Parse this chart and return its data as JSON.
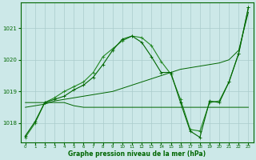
{
  "title": "Graphe pression niveau de la mer (hPa)",
  "bg_color": "#cce8e8",
  "grid_color": "#aacccc",
  "line_color_dark": "#006600",
  "line_color_mid": "#228822",
  "xlim": [
    -0.5,
    23.5
  ],
  "ylim": [
    1017.4,
    1021.8
  ],
  "yticks": [
    1018,
    1019,
    1020,
    1021
  ],
  "xticks": [
    0,
    1,
    2,
    3,
    4,
    5,
    6,
    7,
    8,
    9,
    10,
    11,
    12,
    13,
    14,
    15,
    16,
    17,
    18,
    19,
    20,
    21,
    22,
    23
  ],
  "series_flat": {
    "x": [
      0,
      1,
      2,
      3,
      4,
      5,
      6,
      7,
      8,
      9,
      10,
      11,
      12,
      13,
      14,
      15,
      16,
      17,
      18,
      19,
      20,
      21,
      22,
      23
    ],
    "y": [
      1018.65,
      1018.65,
      1018.65,
      1018.65,
      1018.65,
      1018.55,
      1018.5,
      1018.5,
      1018.5,
      1018.5,
      1018.5,
      1018.5,
      1018.5,
      1018.5,
      1018.5,
      1018.5,
      1018.5,
      1018.5,
      1018.5,
      1018.5,
      1018.5,
      1018.5,
      1018.5,
      1018.5
    ]
  },
  "series_diag": {
    "x": [
      0,
      1,
      2,
      3,
      4,
      5,
      6,
      7,
      8,
      9,
      10,
      11,
      12,
      13,
      14,
      15,
      16,
      17,
      18,
      19,
      20,
      21,
      22,
      23
    ],
    "y": [
      1018.5,
      1018.55,
      1018.6,
      1018.7,
      1018.75,
      1018.8,
      1018.85,
      1018.9,
      1018.95,
      1019.0,
      1019.1,
      1019.2,
      1019.3,
      1019.4,
      1019.5,
      1019.6,
      1019.7,
      1019.75,
      1019.8,
      1019.85,
      1019.9,
      1020.0,
      1020.3,
      1021.5
    ]
  },
  "series_curve1": {
    "x": [
      0,
      1,
      2,
      3,
      4,
      5,
      6,
      7,
      8,
      9,
      10,
      11,
      12,
      13,
      14,
      15,
      16,
      17,
      18,
      19,
      20,
      21,
      22,
      23
    ],
    "y": [
      1017.55,
      1018.0,
      1018.65,
      1018.8,
      1019.0,
      1019.15,
      1019.3,
      1019.6,
      1020.1,
      1020.35,
      1020.6,
      1020.75,
      1020.7,
      1020.45,
      1019.95,
      1019.55,
      1018.75,
      1017.8,
      1017.75,
      1018.65,
      1018.7,
      1019.3,
      1020.2,
      1021.65
    ]
  },
  "series_curve2": {
    "x": [
      0,
      1,
      2,
      3,
      4,
      5,
      6,
      7,
      8,
      9,
      10,
      11,
      12,
      13,
      14,
      15,
      16,
      17,
      18,
      19,
      20,
      21,
      22,
      23
    ],
    "y": [
      1017.6,
      1018.05,
      1018.65,
      1018.75,
      1018.85,
      1019.05,
      1019.2,
      1019.45,
      1019.85,
      1020.3,
      1020.65,
      1020.75,
      1020.55,
      1020.1,
      1019.6,
      1019.6,
      1018.65,
      1017.75,
      1017.55,
      1018.7,
      1018.65,
      1019.3,
      1020.2,
      1021.65
    ]
  }
}
